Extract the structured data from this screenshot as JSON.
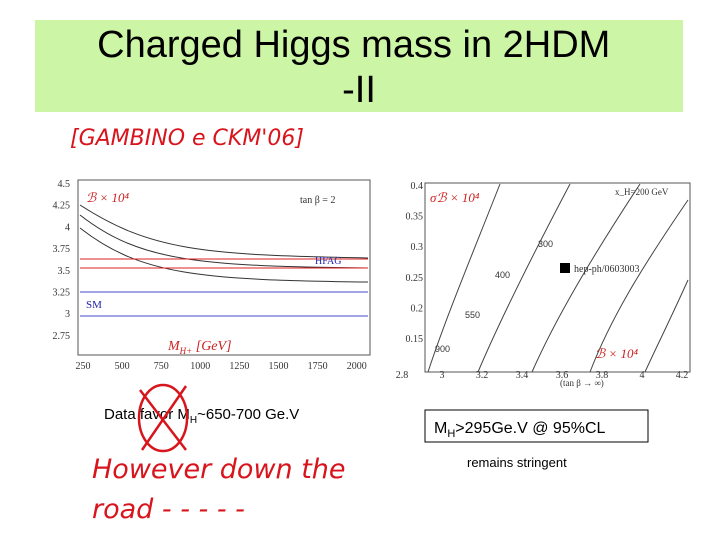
{
  "header": {
    "title": "Charged Higgs mass in 2HDM -II"
  },
  "annotations": {
    "reference": "[GAMBINO e CKM'06]",
    "note_line1": "However down the",
    "note_line2": "road - - - - -"
  },
  "left_plot": {
    "yticks": [
      "4.5",
      "4.25",
      "4",
      "3.75",
      "3.5",
      "3.25",
      "3",
      "2.75"
    ],
    "xticks": [
      "250",
      "500",
      "750",
      "1000",
      "1250",
      "1500",
      "1750",
      "2000"
    ],
    "label": "ℬ × 10⁴",
    "tan_beta": "tan β = 2",
    "hfag": "HFAG",
    "sm": "SM",
    "xlabel": "M",
    "xlabel_sub": "H+",
    "xlabel_unit": " [GeV]"
  },
  "right_plot": {
    "yticks": [
      "0.4",
      "0.35",
      "0.3",
      "0.25",
      "0.2",
      "0.15"
    ],
    "xticks": [
      "2.8",
      "3",
      "3.2",
      "3.4",
      "3.6",
      "3.8",
      "4",
      "4.2"
    ],
    "label": "σℬ × 10⁴",
    "mass_label": "x_H=200 GeV",
    "contours": [
      "300",
      "400",
      "550",
      "900"
    ],
    "reference": "hep-ph/0603003",
    "label2": "ℬ × 10⁴",
    "xlabel": "(tan β → ∞)"
  },
  "captions": {
    "left": [
      "Data favor M",
      "H",
      "~650-700 Ge.V"
    ],
    "right": [
      "M",
      "H",
      ">295Ge.V @ 95%CL"
    ],
    "right_sub": "remains stringent"
  }
}
